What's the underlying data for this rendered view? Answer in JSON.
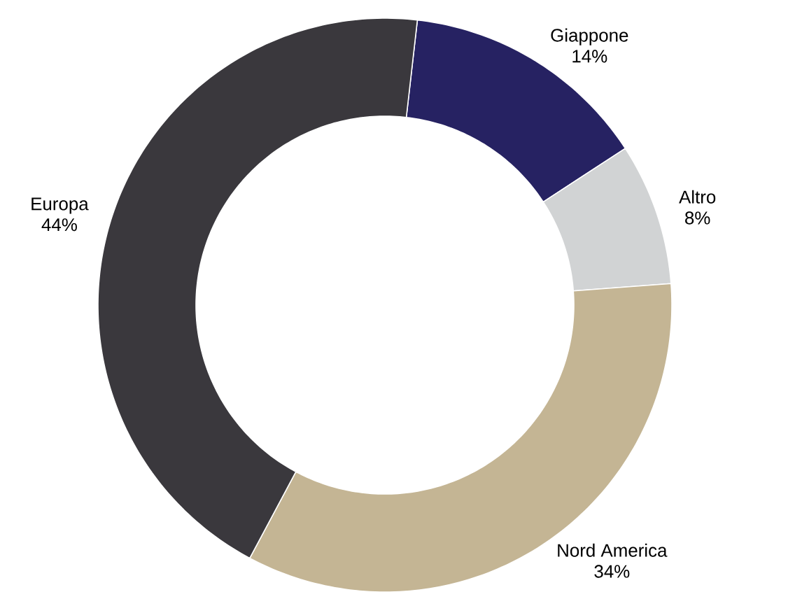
{
  "chart_data": {
    "type": "donut",
    "categories": [
      "Giappone",
      "Altro",
      "Nord America",
      "Europa"
    ],
    "values": [
      14,
      8,
      34,
      44
    ],
    "colors": [
      "#262262",
      "#d1d3d4",
      "#c4b594",
      "#3a383d"
    ],
    "value_labels": [
      "14%",
      "8%",
      "34%",
      "44%"
    ]
  }
}
